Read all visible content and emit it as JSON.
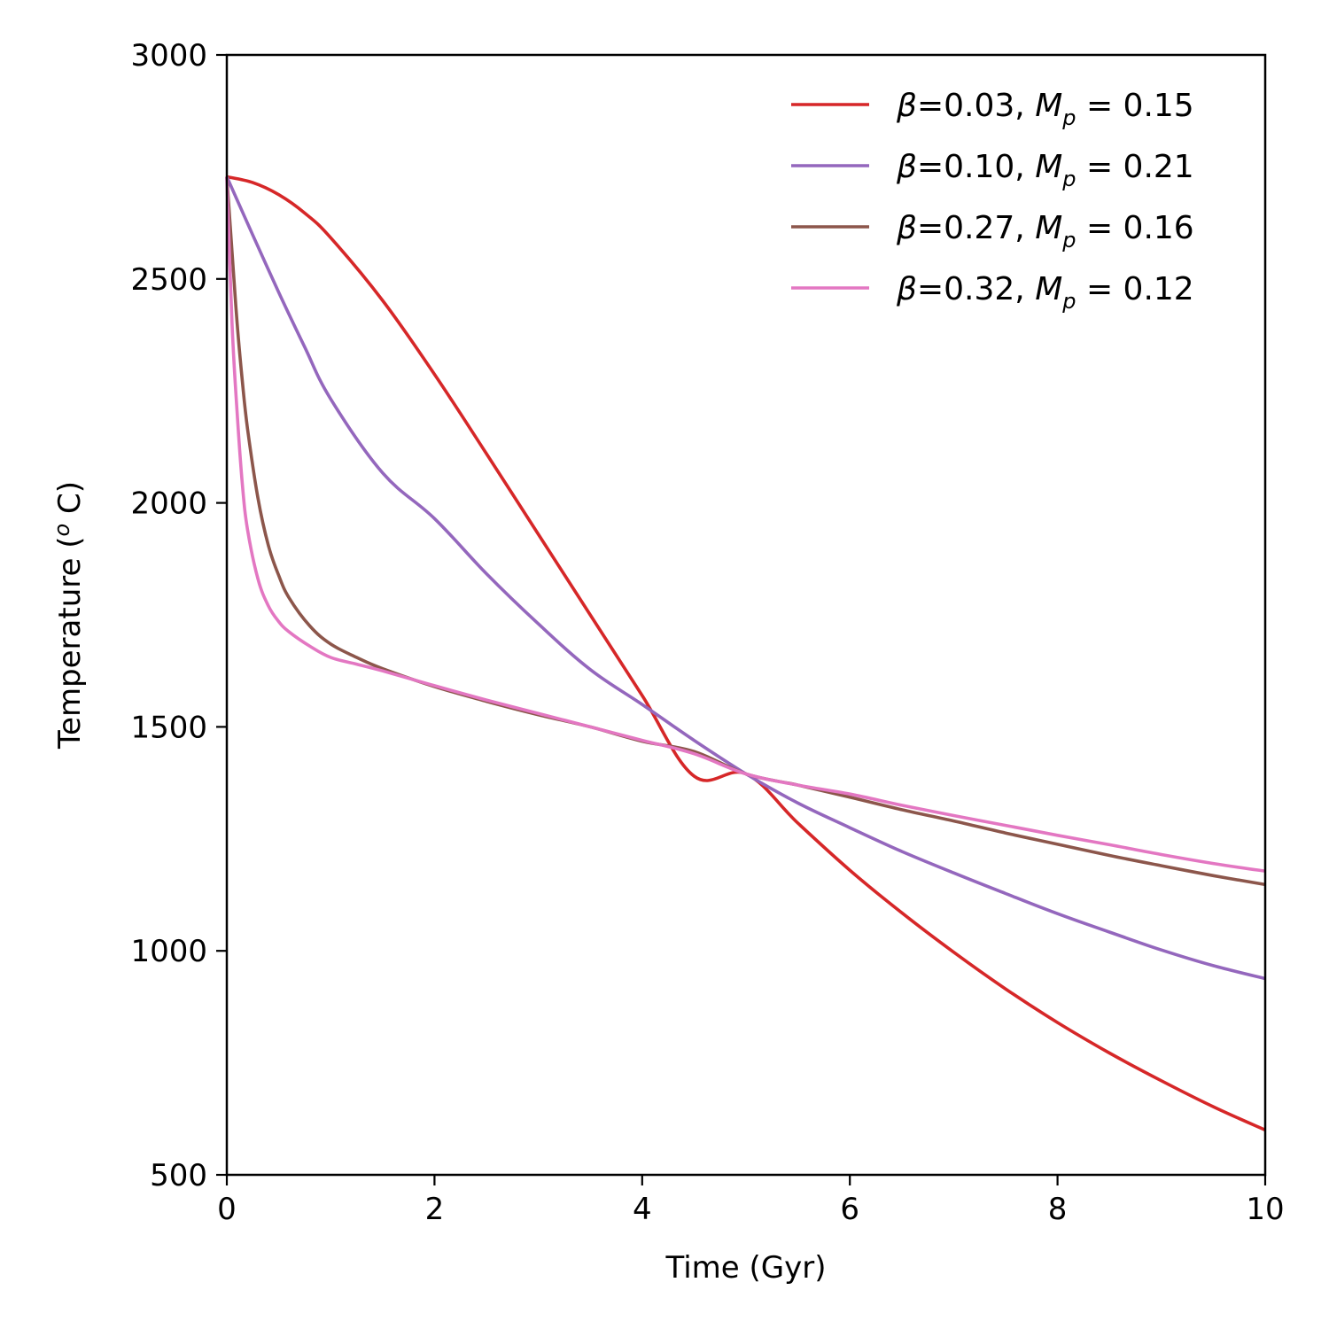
{
  "chart_data": {
    "type": "line",
    "title": "",
    "xlabel": "Time (Gyr)",
    "ylabel": "Temperature (",
    "ylabel_unit": "o",
    "ylabel_end": " C)",
    "xlim": [
      0,
      10
    ],
    "ylim": [
      500,
      3000
    ],
    "xticks": [
      0,
      2,
      4,
      6,
      8,
      10
    ],
    "yticks": [
      500,
      1000,
      1500,
      2000,
      2500,
      3000
    ],
    "grid": false,
    "legend_position": "top-right",
    "series": [
      {
        "name": "β=0.03, M_p = 0.15",
        "beta_symbol": "β",
        "beta_text": "=0.03, ",
        "m_symbol": "M",
        "m_sub": "p",
        "m_value": " = 0.15",
        "color": "#d62728",
        "x": [
          0,
          0.25,
          0.5,
          0.75,
          1,
          1.5,
          2,
          2.5,
          3,
          3.5,
          4,
          4.5,
          5,
          5.5,
          6,
          6.5,
          7,
          7.5,
          8,
          8.5,
          9,
          9.5,
          10
        ],
        "y": [
          2728,
          2715,
          2688,
          2647,
          2592,
          2452,
          2287,
          2110,
          1930,
          1750,
          1570,
          1390,
          1395,
          1285,
          1180,
          1085,
          997,
          915,
          840,
          772,
          710,
          652,
          600
        ]
      },
      {
        "name": "β=0.10, M_p = 0.21",
        "beta_symbol": "β",
        "beta_text": "=0.10, ",
        "m_symbol": "M",
        "m_sub": "p",
        "m_value": " = 0.21",
        "color": "#9467bd",
        "x": [
          0,
          0.25,
          0.5,
          0.75,
          1,
          1.5,
          2,
          2.5,
          3,
          3.5,
          4,
          4.5,
          5,
          5.5,
          6,
          6.5,
          7,
          7.5,
          8,
          8.5,
          9,
          9.5,
          10
        ],
        "y": [
          2728,
          2598,
          2470,
          2348,
          2232,
          2067,
          1965,
          1842,
          1730,
          1628,
          1550,
          1470,
          1395,
          1330,
          1275,
          1222,
          1174,
          1128,
          1083,
          1042,
          1002,
          967,
          938
        ]
      },
      {
        "name": "β=0.27, M_p = 0.16",
        "beta_symbol": "β",
        "beta_text": "=0.27, ",
        "m_symbol": "M",
        "m_sub": "p",
        "m_value": " = 0.16",
        "color": "#8c564b",
        "x": [
          0,
          0.05,
          0.1,
          0.15,
          0.2,
          0.3,
          0.4,
          0.5,
          0.6,
          0.8,
          1,
          1.25,
          1.5,
          2,
          2.5,
          3,
          3.5,
          4,
          4.5,
          5,
          5.5,
          6,
          6.5,
          7,
          7.5,
          8,
          8.5,
          9,
          9.5,
          10
        ],
        "y": [
          2728,
          2560,
          2400,
          2270,
          2165,
          2010,
          1905,
          1838,
          1788,
          1725,
          1685,
          1655,
          1630,
          1590,
          1557,
          1527,
          1500,
          1468,
          1445,
          1395,
          1370,
          1343,
          1315,
          1290,
          1263,
          1238,
          1213,
          1190,
          1168,
          1148
        ]
      },
      {
        "name": "β=0.32, M_p = 0.12",
        "beta_symbol": "β",
        "beta_text": "=0.32, ",
        "m_symbol": "M",
        "m_sub": "p",
        "m_value": " = 0.12",
        "color": "#e377c2",
        "x": [
          0,
          0.05,
          0.1,
          0.15,
          0.2,
          0.3,
          0.4,
          0.5,
          0.6,
          0.8,
          1,
          1.25,
          1.5,
          2,
          2.5,
          3,
          3.5,
          4,
          4.5,
          5,
          5.5,
          6,
          6.5,
          7,
          7.5,
          8,
          8.5,
          9,
          9.5,
          10
        ],
        "y": [
          2728,
          2400,
          2200,
          2040,
          1940,
          1830,
          1770,
          1735,
          1712,
          1680,
          1655,
          1640,
          1625,
          1592,
          1560,
          1530,
          1500,
          1470,
          1440,
          1395,
          1370,
          1350,
          1325,
          1302,
          1280,
          1258,
          1237,
          1215,
          1195,
          1178
        ]
      }
    ]
  }
}
